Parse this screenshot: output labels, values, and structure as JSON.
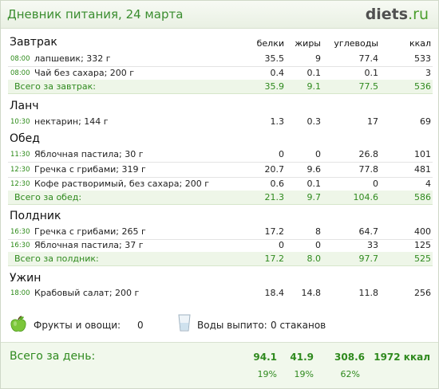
{
  "title": "Дневник питания, 24 марта",
  "logo": {
    "name": "diets",
    "tld": ".ru"
  },
  "columns": {
    "protein": "белки",
    "fat": "жиры",
    "carbs": "углеводы",
    "kcal": "ккал"
  },
  "meals": [
    {
      "name": "Завтрак",
      "items": [
        {
          "time": "08:00",
          "name": "лапшевик; 332 г",
          "protein": "35.5",
          "fat": "9",
          "carbs": "77.4",
          "kcal": "533"
        },
        {
          "time": "08:00",
          "name": "Чай без сахара; 200 г",
          "protein": "0.4",
          "fat": "0.1",
          "carbs": "0.1",
          "kcal": "3"
        }
      ],
      "total": {
        "label": "Всего за завтрак:",
        "protein": "35.9",
        "fat": "9.1",
        "carbs": "77.5",
        "kcal": "536"
      }
    },
    {
      "name": "Ланч",
      "items": [
        {
          "time": "10:30",
          "name": "нектарин; 144 г",
          "protein": "1.3",
          "fat": "0.3",
          "carbs": "17",
          "kcal": "69"
        }
      ]
    },
    {
      "name": "Обед",
      "items": [
        {
          "time": "11:30",
          "name": "Яблочная пастила; 30 г",
          "protein": "0",
          "fat": "0",
          "carbs": "26.8",
          "kcal": "101"
        },
        {
          "time": "12:30",
          "name": "Гречка с грибами; 319 г",
          "protein": "20.7",
          "fat": "9.6",
          "carbs": "77.8",
          "kcal": "481"
        },
        {
          "time": "12:30",
          "name": "Кофе растворимый, без сахара; 200 г",
          "protein": "0.6",
          "fat": "0.1",
          "carbs": "0",
          "kcal": "4"
        }
      ],
      "total": {
        "label": "Всего за обед:",
        "protein": "21.3",
        "fat": "9.7",
        "carbs": "104.6",
        "kcal": "586"
      }
    },
    {
      "name": "Полдник",
      "items": [
        {
          "time": "16:30",
          "name": "Гречка с грибами; 265 г",
          "protein": "17.2",
          "fat": "8",
          "carbs": "64.7",
          "kcal": "400"
        },
        {
          "time": "16:30",
          "name": "Яблочная пастила; 37 г",
          "protein": "0",
          "fat": "0",
          "carbs": "33",
          "kcal": "125"
        }
      ],
      "total": {
        "label": "Всего за полдник:",
        "protein": "17.2",
        "fat": "8.0",
        "carbs": "97.7",
        "kcal": "525"
      }
    },
    {
      "name": "Ужин",
      "items": [
        {
          "time": "18:00",
          "name": "Крабовый салат; 200 г",
          "protein": "18.4",
          "fat": "14.8",
          "carbs": "11.8",
          "kcal": "256"
        }
      ]
    }
  ],
  "fruits": {
    "label": "Фрукты и овощи:",
    "value": "0",
    "icon": "apple-icon"
  },
  "water": {
    "label": "Воды выпито:",
    "value": "0 стаканов",
    "icon": "glass-icon"
  },
  "day_total": {
    "label": "Всего за день:",
    "protein": "94.1",
    "fat": "41.9",
    "carbs": "308.6",
    "kcal": "1972 ккал",
    "protein_pct": "19%",
    "fat_pct": "19%",
    "carbs_pct": "62%"
  }
}
